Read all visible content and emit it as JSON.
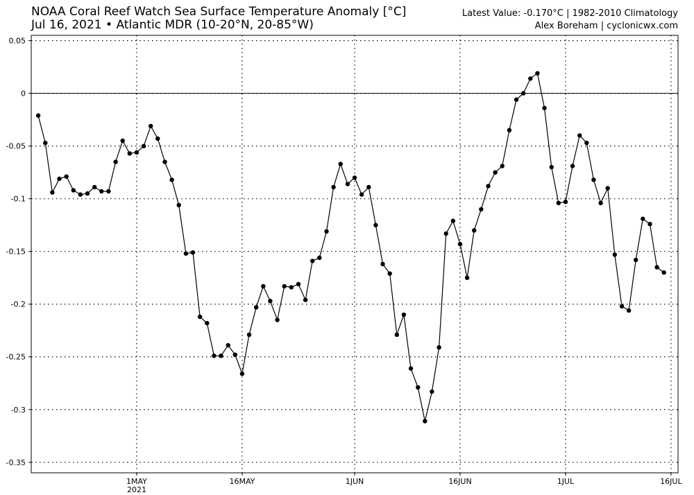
{
  "header": {
    "title_line1": "NOAA Coral Reef Watch Sea Surface Temperature Anomaly [°C]",
    "title_line2": "Jul 16, 2021 • Atlantic MDR (10-20°N, 20-85°W)",
    "info_line1": "Latest Value: -0.170°C | 1982-2010 Climatology",
    "info_line2": "Alex Boreham | cyclonicwx.com"
  },
  "chart_data": {
    "type": "line",
    "title": "NOAA Coral Reef Watch Sea Surface Temperature Anomaly [°C]",
    "subtitle": "Jul 16, 2021 • Atlantic MDR (10-20°N, 20-85°W)",
    "xlabel": "",
    "ylabel": "",
    "x_start": "2021-04-17",
    "x_end": "2021-07-16",
    "xlim": [
      "2021-04-16",
      "2021-07-17"
    ],
    "ylim": [
      -0.36,
      0.055
    ],
    "yticks": [
      0.05,
      0,
      -0.05,
      -0.1,
      -0.15,
      -0.2,
      -0.25,
      -0.3,
      -0.35
    ],
    "ytick_labels": [
      "0.05",
      "0",
      "-0.05",
      "-0.1",
      "-0.15",
      "-0.2",
      "-0.25",
      "-0.3",
      "-0.35"
    ],
    "xticks": [
      {
        "date": "2021-05-01",
        "label": "1MAY",
        "sublabel": "2021"
      },
      {
        "date": "2021-05-16",
        "label": "16MAY",
        "sublabel": ""
      },
      {
        "date": "2021-06-01",
        "label": "1JUN",
        "sublabel": ""
      },
      {
        "date": "2021-06-16",
        "label": "16JUN",
        "sublabel": ""
      },
      {
        "date": "2021-07-01",
        "label": "1JUL",
        "sublabel": ""
      },
      {
        "date": "2021-07-16",
        "label": "16JUL",
        "sublabel": ""
      }
    ],
    "grid": true,
    "zero_line": true,
    "series": [
      {
        "values": [
          -0.021,
          -0.047,
          -0.094,
          -0.081,
          -0.079,
          -0.092,
          -0.096,
          -0.095,
          -0.089,
          -0.093,
          -0.093,
          -0.065,
          -0.045,
          -0.057,
          -0.056,
          -0.05,
          -0.031,
          -0.043,
          -0.065,
          -0.082,
          -0.106,
          -0.152,
          -0.151,
          -0.212,
          -0.218,
          -0.249,
          -0.249,
          -0.239,
          -0.248,
          -0.266,
          -0.229,
          -0.203,
          -0.183,
          -0.197,
          -0.215,
          -0.183,
          -0.184,
          -0.181,
          -0.196,
          -0.159,
          -0.156,
          -0.131,
          -0.089,
          -0.067,
          -0.086,
          -0.08,
          -0.096,
          -0.089,
          -0.125,
          -0.162,
          -0.171,
          -0.229,
          -0.21,
          -0.261,
          -0.279,
          -0.311,
          -0.283,
          -0.241,
          -0.133,
          -0.121,
          -0.143,
          -0.175,
          -0.13,
          -0.11,
          -0.088,
          -0.075,
          -0.069,
          -0.035,
          -0.006,
          0.0,
          0.014,
          0.019,
          -0.014,
          -0.07,
          -0.104,
          -0.103,
          -0.069,
          -0.04,
          -0.047,
          -0.082,
          -0.104,
          -0.09,
          -0.153,
          -0.202,
          -0.206,
          -0.158,
          -0.119,
          -0.124,
          -0.165,
          -0.17
        ],
        "color": "#000000"
      }
    ]
  }
}
